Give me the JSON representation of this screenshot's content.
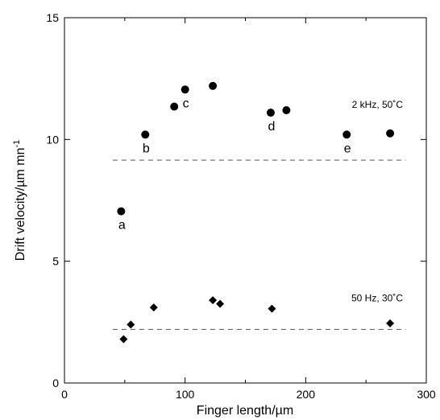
{
  "chart_data": {
    "type": "scatter",
    "xlabel": "Finger length/µm",
    "ylabel": "Drift velocity/µm mn",
    "ylabel_superscript": "-1",
    "xlim": [
      0,
      300
    ],
    "ylim": [
      0,
      15
    ],
    "xticks": [
      "0",
      "100",
      "200",
      "300"
    ],
    "yticks": [
      "0",
      "5",
      "10",
      "15"
    ],
    "grid": false,
    "series": [
      {
        "name": "2 kHz, 50˚C",
        "marker": "circle",
        "x": [
          47,
          67,
          91,
          100,
          123,
          171,
          184,
          234,
          270
        ],
        "y": [
          7.05,
          10.2,
          11.35,
          12.05,
          12.2,
          11.1,
          11.2,
          10.2,
          10.25
        ],
        "point_labels": [
          "a",
          "b",
          "",
          "c",
          "",
          "d",
          "",
          "e",
          ""
        ],
        "reference_level": 9.15
      },
      {
        "name": "50 Hz, 30˚C",
        "marker": "diamond",
        "x": [
          49,
          55,
          74,
          123,
          129,
          172,
          270
        ],
        "y": [
          1.8,
          2.4,
          3.1,
          3.4,
          3.25,
          3.05,
          2.45
        ],
        "point_labels": [
          "",
          "",
          "",
          "",
          "",
          "",
          ""
        ],
        "reference_level": 2.2
      }
    ],
    "colors": {
      "marker": "#000000",
      "axis": "#000000",
      "reference_line": "#666666"
    }
  }
}
